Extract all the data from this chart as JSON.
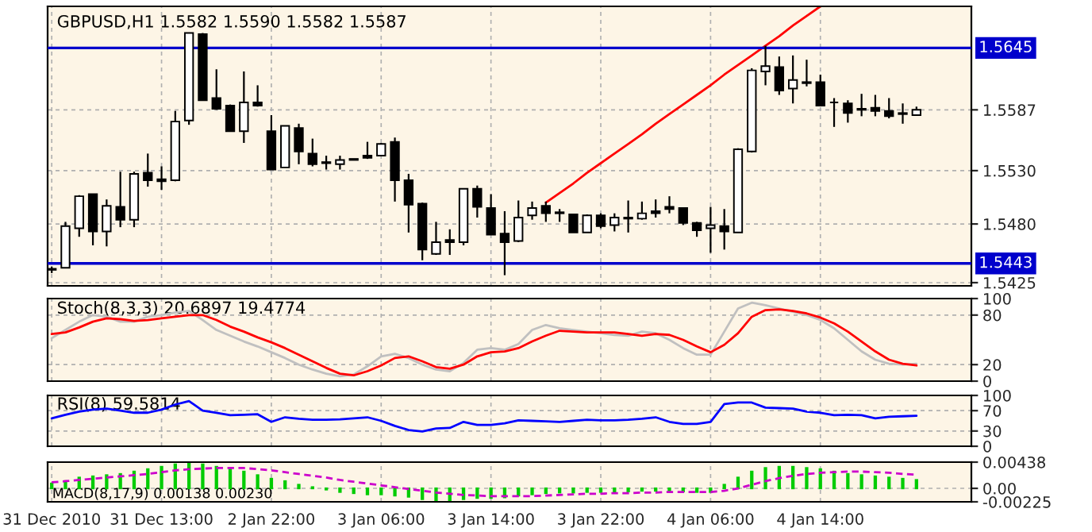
{
  "chart_data": [
    {
      "type": "candlestick",
      "title": "GBPUSD,H1 1.5582 1.5590 1.5582 1.5587",
      "tick_labels": "y",
      "grid": true,
      "categories": [
        null,
        null,
        null,
        null,
        null,
        null,
        null,
        null,
        null,
        null,
        null,
        null,
        null,
        null,
        null,
        null,
        null,
        null,
        null,
        null,
        null,
        null,
        null,
        null,
        null,
        null,
        null,
        null,
        null,
        null,
        null,
        null,
        null,
        null,
        null,
        null,
        null,
        null,
        null,
        null,
        null,
        null,
        null,
        null,
        null,
        null,
        null,
        null,
        null,
        null,
        null,
        null,
        null,
        null,
        null,
        null,
        null,
        null,
        null,
        null,
        null,
        null,
        null,
        null
      ],
      "ohlc": [
        [
          1.5437,
          1.544,
          1.5434,
          1.5438
        ],
        [
          1.5439,
          1.5482,
          1.5439,
          1.5478
        ],
        [
          1.5476,
          1.5507,
          1.5468,
          1.5506
        ],
        [
          1.5508,
          1.5508,
          1.546,
          1.5473
        ],
        [
          1.5473,
          1.5503,
          1.5459,
          1.5497
        ],
        [
          1.5496,
          1.5529,
          1.5477,
          1.5484
        ],
        [
          1.5484,
          1.5529,
          1.5477,
          1.5527
        ],
        [
          1.5528,
          1.5546,
          1.5515,
          1.5521
        ],
        [
          1.5522,
          1.5534,
          1.5512,
          1.552
        ],
        [
          1.5521,
          1.5586,
          1.552,
          1.5576
        ],
        [
          1.5577,
          1.5659,
          1.5573,
          1.5659
        ],
        [
          1.5658,
          1.5659,
          1.5596,
          1.5596
        ],
        [
          1.5598,
          1.5625,
          1.5587,
          1.5588
        ],
        [
          1.5591,
          1.5592,
          1.5567,
          1.5567
        ],
        [
          1.5567,
          1.5623,
          1.5556,
          1.5594
        ],
        [
          1.5594,
          1.561,
          1.559,
          1.5591
        ],
        [
          1.5567,
          1.5582,
          1.5531,
          1.5531
        ],
        [
          1.5533,
          1.5572,
          1.5533,
          1.5572
        ],
        [
          1.557,
          1.5574,
          1.5536,
          1.5548
        ],
        [
          1.5546,
          1.556,
          1.5534,
          1.5536
        ],
        [
          1.5538,
          1.5544,
          1.5531,
          1.5537
        ],
        [
          1.5536,
          1.5544,
          1.5531,
          1.554
        ],
        [
          1.5541,
          1.5541,
          1.554,
          1.554
        ],
        [
          1.5544,
          1.5557,
          1.5541,
          1.5542
        ],
        [
          1.5544,
          1.5556,
          1.5544,
          1.5555
        ],
        [
          1.5557,
          1.5561,
          1.5501,
          1.5521
        ],
        [
          1.5521,
          1.5527,
          1.5472,
          1.5498
        ],
        [
          1.5499,
          1.55,
          1.5446,
          1.5456
        ],
        [
          1.5452,
          1.5482,
          1.5451,
          1.5463
        ],
        [
          1.5465,
          1.5475,
          1.5451,
          1.5463
        ],
        [
          1.5463,
          1.5513,
          1.546,
          1.5513
        ],
        [
          1.5513,
          1.5516,
          1.5486,
          1.5496
        ],
        [
          1.5495,
          1.5508,
          1.547,
          1.547
        ],
        [
          1.5471,
          1.5492,
          1.5432,
          1.5463
        ],
        [
          1.5464,
          1.5502,
          1.5463,
          1.5486
        ],
        [
          1.5488,
          1.5501,
          1.5484,
          1.5495
        ],
        [
          1.5497,
          1.5501,
          1.5482,
          1.549
        ],
        [
          1.5491,
          1.5494,
          1.5482,
          1.549
        ],
        [
          1.5489,
          1.5489,
          1.5472,
          1.5472
        ],
        [
          1.5472,
          1.5489,
          1.5472,
          1.5488
        ],
        [
          1.5488,
          1.549,
          1.5476,
          1.5478
        ],
        [
          1.5479,
          1.549,
          1.5473,
          1.5486
        ],
        [
          1.5486,
          1.5502,
          1.5472,
          1.5485
        ],
        [
          1.5485,
          1.5501,
          1.5484,
          1.549
        ],
        [
          1.5492,
          1.5503,
          1.5486,
          1.549
        ],
        [
          1.5496,
          1.5506,
          1.549,
          1.5494
        ],
        [
          1.5495,
          1.5495,
          1.5479,
          1.5481
        ],
        [
          1.5481,
          1.5482,
          1.5468,
          1.5474
        ],
        [
          1.5476,
          1.5496,
          1.5453,
          1.5479
        ],
        [
          1.5478,
          1.5494,
          1.5456,
          1.5473
        ],
        [
          1.5472,
          1.5551,
          1.5472,
          1.555
        ],
        [
          1.5548,
          1.5626,
          1.5547,
          1.5624
        ],
        [
          1.5623,
          1.5647,
          1.561,
          1.5628
        ],
        [
          1.5627,
          1.5637,
          1.5601,
          1.5605
        ],
        [
          1.5607,
          1.5638,
          1.5593,
          1.5615
        ],
        [
          1.5613,
          1.5634,
          1.5609,
          1.5612
        ],
        [
          1.5613,
          1.562,
          1.5591,
          1.5591
        ],
        [
          1.5594,
          1.5598,
          1.5571,
          1.5594
        ],
        [
          1.5593,
          1.5596,
          1.5575,
          1.5584
        ],
        [
          1.5588,
          1.5602,
          1.5581,
          1.5587
        ],
        [
          1.5589,
          1.5601,
          1.5581,
          1.5586
        ],
        [
          1.5586,
          1.5598,
          1.5579,
          1.5581
        ],
        [
          1.5584,
          1.5593,
          1.5574,
          1.5583
        ],
        [
          1.5582,
          1.559,
          1.5582,
          1.5587
        ]
      ],
      "series": [
        {
          "type": "line",
          "color": "#ff0000",
          "values": [
            null,
            null,
            null,
            null,
            null,
            null,
            null,
            null,
            null,
            null,
            null,
            null,
            null,
            null,
            null,
            null,
            null,
            null,
            null,
            null,
            null,
            null,
            null,
            null,
            null,
            null,
            null,
            null,
            null,
            null,
            null,
            null,
            null,
            null,
            null,
            null,
            1.55,
            1.5509,
            1.5518,
            1.5528,
            1.5537,
            1.5546,
            1.5555,
            1.5564,
            1.5574,
            1.5583,
            1.5592,
            1.5601,
            1.561,
            1.562,
            1.5629,
            1.5638,
            1.5647,
            1.5656,
            1.5666,
            1.5675,
            1.5684,
            null,
            null,
            null,
            null,
            null,
            null,
            null
          ]
        }
      ],
      "ylim": [
        1.5422,
        1.5684
      ],
      "yticks": [
        1.5587,
        {
          "value": 1.553,
          "label": "1.5530"
        },
        {
          "value": 1.548,
          "label": "1.5480"
        },
        1.5425
      ],
      "ref_lines": [
        {
          "axis": "y",
          "value": 1.5645,
          "label": "1.5645",
          "color": "#0000cc"
        },
        {
          "axis": "y",
          "value": 1.5443,
          "label": "1.5443",
          "color": "#0000cc"
        }
      ]
    },
    {
      "type": "line",
      "title": "Stoch(8,3,3) 20.6897 19.4774",
      "tick_labels": "y",
      "grid": true,
      "categories": [
        null,
        null,
        null,
        null,
        null,
        null,
        null,
        null,
        null,
        null,
        null,
        null,
        null,
        null,
        null,
        null,
        null,
        null,
        null,
        null,
        null,
        null,
        null,
        null,
        null,
        null,
        null,
        null,
        null,
        null,
        null,
        null,
        null,
        null,
        null,
        null,
        null,
        null,
        null,
        null,
        null,
        null,
        null,
        null,
        null,
        null,
        null,
        null,
        null,
        null,
        null,
        null,
        null,
        null,
        null,
        null,
        null,
        null,
        null,
        null,
        null,
        null,
        null,
        null
      ],
      "series": [
        {
          "color": "#c0c0c0",
          "values": [
            52,
            62,
            72,
            80,
            78,
            72,
            72,
            78,
            80,
            83,
            85,
            74,
            62,
            55,
            48,
            42,
            35,
            28,
            20,
            14,
            9,
            6,
            8,
            18,
            30,
            33,
            28,
            20,
            14,
            12,
            22,
            38,
            40,
            38,
            45,
            62,
            68,
            64,
            62,
            60,
            58,
            56,
            55,
            60,
            58,
            50,
            40,
            32,
            32,
            60,
            88,
            95,
            92,
            88,
            84,
            80,
            74,
            64,
            50,
            36,
            26,
            21,
            20,
            21
          ]
        },
        {
          "color": "#ff0000",
          "values": [
            57,
            59,
            65,
            72,
            76,
            75,
            73,
            74,
            76,
            78,
            80,
            80,
            74,
            66,
            60,
            53,
            47,
            40,
            32,
            24,
            16,
            9,
            7,
            12,
            19,
            28,
            30,
            24,
            17,
            15,
            20,
            30,
            35,
            36,
            40,
            48,
            55,
            61,
            60,
            59,
            59,
            59,
            57,
            55,
            57,
            56,
            50,
            42,
            35,
            44,
            58,
            78,
            86,
            87,
            85,
            82,
            77,
            70,
            60,
            48,
            36,
            26,
            21,
            19
          ]
        }
      ],
      "ylim": [
        0,
        100
      ],
      "yticks": [
        0,
        20,
        80,
        100
      ]
    },
    {
      "type": "line",
      "title": "RSI(8) 59.5814",
      "tick_labels": "y",
      "grid": true,
      "categories": [
        null,
        null,
        null,
        null,
        null,
        null,
        null,
        null,
        null,
        null,
        null,
        null,
        null,
        null,
        null,
        null,
        null,
        null,
        null,
        null,
        null,
        null,
        null,
        null,
        null,
        null,
        null,
        null,
        null,
        null,
        null,
        null,
        null,
        null,
        null,
        null,
        null,
        null,
        null,
        null,
        null,
        null,
        null,
        null,
        null,
        null,
        null,
        null,
        null,
        null,
        null,
        null,
        null,
        null,
        null,
        null,
        null,
        null,
        null,
        null,
        null,
        null,
        null,
        null
      ],
      "series": [
        {
          "color": "#0000ff",
          "values": [
            55,
            62,
            68,
            72,
            74,
            70,
            66,
            66,
            72,
            82,
            89,
            70,
            66,
            61,
            62,
            63,
            48,
            57,
            54,
            52,
            52,
            53,
            55,
            57,
            50,
            40,
            32,
            29,
            35,
            36,
            48,
            42,
            42,
            45,
            51,
            50,
            49,
            48,
            50,
            52,
            51,
            51,
            52,
            54,
            57,
            48,
            44,
            44,
            48,
            83,
            86,
            86,
            76,
            75,
            74,
            68,
            66,
            61,
            62,
            61,
            55,
            58,
            59,
            60
          ]
        }
      ],
      "ylim": [
        0,
        100
      ],
      "yticks": [
        0,
        30,
        70,
        100
      ]
    },
    {
      "type": "bar",
      "title": "MACD(8,17,9) 0.00138 0.00230",
      "grid": true,
      "categories": [
        "31 Dec 2010",
        null,
        null,
        null,
        null,
        null,
        null,
        null,
        "31 Dec 13:00",
        null,
        null,
        null,
        null,
        null,
        null,
        null,
        "2 Jan 22:00",
        null,
        null,
        null,
        null,
        null,
        null,
        null,
        "3 Jan 06:00",
        null,
        null,
        null,
        null,
        null,
        null,
        null,
        "3 Jan 14:00",
        null,
        null,
        null,
        null,
        null,
        null,
        null,
        "3 Jan 22:00",
        null,
        null,
        null,
        null,
        null,
        null,
        null,
        "4 Jan 06:00",
        null,
        null,
        null,
        null,
        null,
        null,
        null,
        "4 Jan 14:00",
        null,
        null,
        null,
        null,
        null,
        null,
        null
      ],
      "series": [
        {
          "type": "bar",
          "color": "#00cc00",
          "values": [
            0.0008,
            0.0012,
            0.0018,
            0.002,
            0.0022,
            0.0024,
            0.0028,
            0.0032,
            0.0036,
            0.004,
            0.0042,
            0.004,
            0.0036,
            0.0032,
            0.0028,
            0.0022,
            0.0016,
            0.0012,
            0.0006,
            0.0002,
            -0.0002,
            -0.0006,
            -0.0008,
            -0.001,
            -0.001,
            -0.0012,
            -0.0014,
            -0.0018,
            -0.002,
            -0.002,
            -0.0018,
            -0.0016,
            -0.0016,
            -0.0015,
            -0.0012,
            -0.001,
            -0.0008,
            -0.0007,
            -0.0007,
            -0.0006,
            -0.0006,
            -0.0006,
            -0.0005,
            -0.0004,
            -0.0004,
            -0.0004,
            -0.0005,
            -0.0006,
            -0.0006,
            0.0006,
            0.0018,
            0.0028,
            0.0034,
            0.0036,
            0.0036,
            0.0034,
            0.0032,
            0.0028,
            0.0024,
            0.0022,
            0.002,
            0.0018,
            0.0016,
            0.0014
          ]
        },
        {
          "type": "line",
          "color": "#cc00cc",
          "line_style": "dashed",
          "values": [
            0.001,
            0.0012,
            0.0014,
            0.0016,
            0.0018,
            0.002,
            0.0022,
            0.0024,
            0.0027,
            0.003,
            0.0032,
            0.0033,
            0.0034,
            0.0034,
            0.0034,
            0.0032,
            0.003,
            0.0027,
            0.0024,
            0.0021,
            0.0018,
            0.0014,
            0.0011,
            0.0008,
            0.0005,
            0.0002,
            -0.0001,
            -0.0004,
            -0.0007,
            -0.0009,
            -0.0011,
            -0.0012,
            -0.0013,
            -0.0013,
            -0.0013,
            -0.0013,
            -0.0012,
            -0.0011,
            -0.001,
            -0.0009,
            -0.0009,
            -0.0008,
            -0.0008,
            -0.0007,
            -0.0007,
            -0.0006,
            -0.0006,
            -0.0006,
            -0.0006,
            -0.0004,
            0.0,
            0.0006,
            0.0012,
            0.0017,
            0.0021,
            0.0024,
            0.0026,
            0.0027,
            0.0028,
            0.0028,
            0.0027,
            0.0026,
            0.0024,
            0.0023
          ]
        }
      ],
      "ylim": [
        -0.00225,
        0.00438
      ],
      "yticks": [
        0.00438,
        {
          "value": 0,
          "label": "0.00"
        },
        {
          "value": -0.00225,
          "label": "-0.00225"
        }
      ]
    }
  ]
}
